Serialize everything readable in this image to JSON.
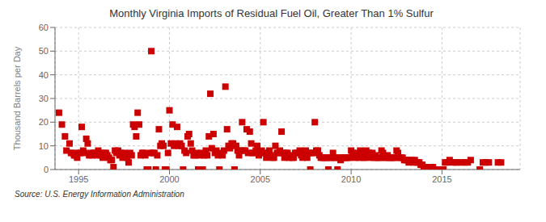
{
  "chart_data": {
    "type": "scatter",
    "title": "Monthly Virginia Imports of Residual Fuel Oil, Greater Than 1% Sulfur",
    "ylabel": "Thousand Barrels per Day",
    "annotations": [
      "Source: U.S. Energy Information Administration"
    ],
    "color": "#cc0000",
    "marker": "square",
    "grid": true,
    "xlim": [
      1993.7,
      2019.3
    ],
    "xticks": [
      1995,
      2000,
      2005,
      2010,
      2015
    ],
    "ylim": [
      0,
      60
    ],
    "yticks": [
      0,
      10,
      20,
      30,
      40,
      50,
      60
    ],
    "x": [
      1993.92,
      1994.08,
      1994.25,
      1994.33,
      1994.5,
      1994.58,
      1994.67,
      1994.75,
      1994.83,
      1994.92,
      1995.0,
      1995.08,
      1995.17,
      1995.25,
      1995.33,
      1995.42,
      1995.5,
      1995.58,
      1995.67,
      1995.75,
      1995.83,
      1995.92,
      1996.0,
      1996.08,
      1996.17,
      1996.25,
      1996.33,
      1996.42,
      1996.5,
      1996.58,
      1996.67,
      1996.75,
      1996.83,
      1996.92,
      1997.0,
      1997.08,
      1997.17,
      1997.25,
      1997.33,
      1997.42,
      1997.5,
      1997.58,
      1997.67,
      1997.75,
      1997.83,
      1997.92,
      1998.0,
      1998.08,
      1998.17,
      1998.25,
      1998.33,
      1998.42,
      1998.5,
      1998.58,
      1998.67,
      1998.75,
      1998.83,
      1998.92,
      1999.0,
      1999.08,
      1999.17,
      1999.25,
      1999.33,
      1999.42,
      1999.5,
      1999.58,
      1999.67,
      1999.75,
      1999.83,
      1999.92,
      2000.0,
      2000.08,
      2000.17,
      2000.25,
      2000.33,
      2000.42,
      2000.5,
      2000.58,
      2000.67,
      2000.75,
      2000.83,
      2000.92,
      2001.0,
      2001.08,
      2001.17,
      2001.25,
      2001.33,
      2001.42,
      2001.5,
      2001.58,
      2001.67,
      2001.75,
      2001.83,
      2001.92,
      2002.0,
      2002.08,
      2002.17,
      2002.25,
      2002.33,
      2002.42,
      2002.5,
      2002.58,
      2002.67,
      2002.75,
      2002.83,
      2002.92,
      2003.0,
      2003.08,
      2003.17,
      2003.25,
      2003.33,
      2003.42,
      2003.5,
      2003.58,
      2003.67,
      2003.75,
      2003.83,
      2003.92,
      2004.0,
      2004.08,
      2004.17,
      2004.25,
      2004.33,
      2004.42,
      2004.5,
      2004.58,
      2004.67,
      2004.75,
      2004.83,
      2004.92,
      2005.0,
      2005.08,
      2005.17,
      2005.25,
      2005.33,
      2005.42,
      2005.5,
      2005.58,
      2005.67,
      2005.75,
      2005.83,
      2005.92,
      2006.0,
      2006.08,
      2006.17,
      2006.25,
      2006.33,
      2006.42,
      2006.5,
      2006.58,
      2006.67,
      2006.75,
      2006.83,
      2006.92,
      2007.0,
      2007.08,
      2007.17,
      2007.25,
      2007.33,
      2007.42,
      2007.5,
      2007.58,
      2007.67,
      2007.75,
      2007.83,
      2007.92,
      2008.0,
      2008.08,
      2008.17,
      2008.25,
      2008.33,
      2008.42,
      2008.5,
      2008.58,
      2008.67,
      2008.75,
      2008.83,
      2008.92,
      2009.0,
      2009.08,
      2009.17,
      2009.25,
      2009.33,
      2009.42,
      2009.5,
      2009.58,
      2009.67,
      2009.75,
      2009.83,
      2009.92,
      2010.0,
      2010.08,
      2010.17,
      2010.25,
      2010.33,
      2010.42,
      2010.5,
      2010.58,
      2010.67,
      2010.75,
      2010.83,
      2010.92,
      2011.0,
      2011.08,
      2011.17,
      2011.25,
      2011.33,
      2011.42,
      2011.5,
      2011.58,
      2011.67,
      2011.75,
      2011.83,
      2011.92,
      2012.0,
      2012.08,
      2012.17,
      2012.25,
      2012.33,
      2012.42,
      2012.5,
      2012.58,
      2012.67,
      2012.75,
      2012.83,
      2012.92,
      2013.0,
      2013.08,
      2013.17,
      2013.25,
      2013.33,
      2013.42,
      2013.5,
      2013.58,
      2013.67,
      2013.75,
      2013.83,
      2013.92,
      2014.0,
      2014.08,
      2014.17,
      2014.25,
      2014.33,
      2014.42,
      2014.5,
      2014.58,
      2014.67,
      2015.0,
      2015.08,
      2015.17,
      2015.25,
      2015.42,
      2015.58,
      2015.75,
      2015.83,
      2016.08,
      2016.25,
      2016.42,
      2016.58,
      2017.08,
      2017.25,
      2017.42,
      2017.58,
      2018.08,
      2018.25
    ],
    "values": [
      24,
      19,
      14,
      8,
      11,
      7,
      7,
      6,
      6,
      5,
      7,
      7,
      18,
      8,
      7,
      13,
      11,
      6,
      7,
      6,
      7,
      7,
      6,
      8,
      7,
      6,
      5,
      7,
      7,
      6,
      5,
      4,
      4,
      1,
      8,
      7,
      8,
      6,
      7,
      5,
      7,
      6,
      5,
      3,
      7,
      6,
      19,
      18,
      14,
      24,
      19,
      6,
      7,
      7,
      6,
      0,
      0,
      7,
      50,
      7,
      7,
      0,
      6,
      17,
      10,
      11,
      10,
      0,
      0,
      7,
      25,
      11,
      19,
      10,
      11,
      18,
      10,
      11,
      10,
      0,
      8,
      7,
      14,
      15,
      11,
      8,
      6,
      6,
      7,
      0,
      6,
      7,
      0,
      6,
      8,
      6,
      14,
      32,
      9,
      15,
      7,
      8,
      6,
      0,
      7,
      6,
      8,
      35,
      17,
      10,
      9,
      11,
      11,
      0,
      10,
      8,
      6,
      8,
      20,
      8,
      8,
      17,
      7,
      16,
      11,
      7,
      7,
      8,
      10,
      6,
      7,
      8,
      20,
      7,
      5,
      7,
      8,
      6,
      5,
      5,
      10,
      7,
      7,
      8,
      16,
      7,
      5,
      7,
      7,
      5,
      6,
      5,
      5,
      7,
      7,
      7,
      8,
      6,
      5,
      7,
      8,
      5,
      7,
      0,
      7,
      7,
      20,
      8,
      8,
      6,
      5,
      5,
      5,
      5,
      5,
      0,
      5,
      5,
      7,
      5,
      5,
      0,
      5,
      4,
      5,
      5,
      5,
      5,
      5,
      5,
      8,
      7,
      7,
      5,
      6,
      5,
      8,
      6,
      5,
      5,
      8,
      7,
      7,
      5,
      7,
      5,
      6,
      5,
      5,
      5,
      8,
      7,
      5,
      5,
      6,
      5,
      5,
      5,
      5,
      5,
      8,
      7,
      5,
      5,
      5,
      4,
      4,
      4,
      3,
      4,
      4,
      3,
      4,
      3,
      3,
      3,
      2,
      2,
      1,
      1,
      0,
      1,
      0,
      1,
      1,
      0,
      0,
      0,
      0,
      3,
      3,
      4,
      3,
      3,
      3,
      3,
      3,
      3,
      4,
      0,
      3,
      3,
      3,
      3,
      3
    ]
  }
}
